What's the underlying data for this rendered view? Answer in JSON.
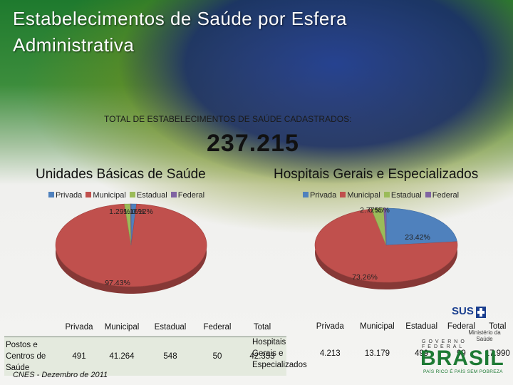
{
  "title": "Estabelecimentos de Saúde por Esfera Administrativa",
  "subtitle": "TOTAL DE ESTABELECIMENTOS DE SAÚDE CADASTRADOS:",
  "total": "237.215",
  "source": "CNES - Dezembro de 2011",
  "logo": {
    "sus": "SUS",
    "ministry": "Ministério da Saúde",
    "government": "GOVERNO FEDERAL",
    "brasil": "BRASIL",
    "slogan": "PAÍS RICO É PAÍS SEM POBREZA"
  },
  "colors": {
    "privada": "#4f81bd",
    "municipal": "#c0504d",
    "estadual": "#9bbb59",
    "federal": "#8064a2"
  },
  "chart_data": [
    {
      "type": "pie",
      "title": "Unidades Básicas de Saúde",
      "categories": [
        "Privada",
        "Municipal",
        "Estadual",
        "Federal"
      ],
      "values": [
        1.16,
        97.43,
        1.29,
        0.12
      ],
      "data_labels": [
        "1.16%",
        "97.43%",
        "1.29%",
        "0.12%"
      ],
      "legend": "top"
    },
    {
      "type": "pie",
      "title": "Hospitais Gerais e Especializados",
      "categories": [
        "Privada",
        "Municipal",
        "Estadual",
        "Federal"
      ],
      "values": [
        23.42,
        73.26,
        2.77,
        0.55
      ],
      "data_labels": [
        "23.42%",
        "73.26%",
        "2.77%",
        "0.55%"
      ],
      "legend": "top"
    }
  ],
  "table1": {
    "headers": [
      "Privada",
      "Municipal",
      "Estadual",
      "Federal",
      "Total"
    ],
    "row_label": "Postos e Centros de Saúde",
    "values": [
      "491",
      "41.264",
      "548",
      "50",
      "42.353"
    ]
  },
  "table2": {
    "headers": [
      "Privada",
      "Municipal",
      "Estadual",
      "Federal",
      "Total"
    ],
    "row_label": "Hospitais Gerais e Especializados",
    "values": [
      "4.213",
      "13.179",
      "499",
      "99",
      "17.990"
    ]
  }
}
